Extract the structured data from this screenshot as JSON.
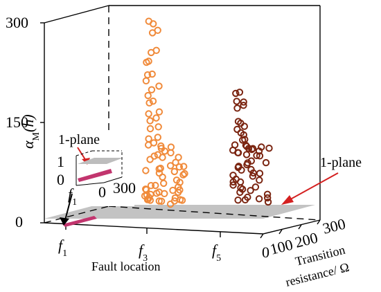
{
  "chart_data": {
    "type": "scatter",
    "title": "",
    "xlabel": "Fault location",
    "ylabel_symbol": "α",
    "ylabel_sub": "M",
    "ylabel_arg": "(h)",
    "zlabel_line1": "Transition",
    "zlabel_line2": "resistance/ Ω",
    "z_ticks": [
      "0",
      "100",
      "200",
      "300"
    ],
    "y_ticks": [
      "0",
      "150",
      "300"
    ],
    "x_ticks": [
      {
        "base": "f",
        "sub": "1"
      },
      {
        "base": "f",
        "sub": "3"
      },
      {
        "base": "f",
        "sub": "5"
      }
    ],
    "ylim": [
      0,
      300
    ],
    "zlim": [
      0,
      300
    ],
    "plane_label": "1-plane",
    "inset": {
      "plane_label": "1-plane",
      "y_ticks": [
        "1",
        "0"
      ],
      "z_ticks": [
        "0",
        "300"
      ],
      "x_tick": {
        "base": "f",
        "sub": "1"
      }
    },
    "series": [
      {
        "location": "f1",
        "color": "#c2356e",
        "values": [
          1,
          1,
          1,
          1,
          1,
          1,
          1,
          1
        ]
      },
      {
        "location": "f3",
        "color": "#f08a3a",
        "values": [
          295,
          280,
          250,
          235,
          215,
          200,
          185,
          170,
          150,
          140,
          125,
          110,
          100,
          90,
          80,
          70,
          60,
          50,
          40,
          30,
          25,
          20,
          15,
          10,
          8
        ]
      },
      {
        "location": "f5",
        "color": "#7a2410",
        "values": [
          180,
          170,
          160,
          140,
          130,
          120,
          110,
          100,
          95,
          90,
          80,
          70,
          60,
          50,
          40,
          30,
          20,
          10
        ]
      }
    ]
  }
}
